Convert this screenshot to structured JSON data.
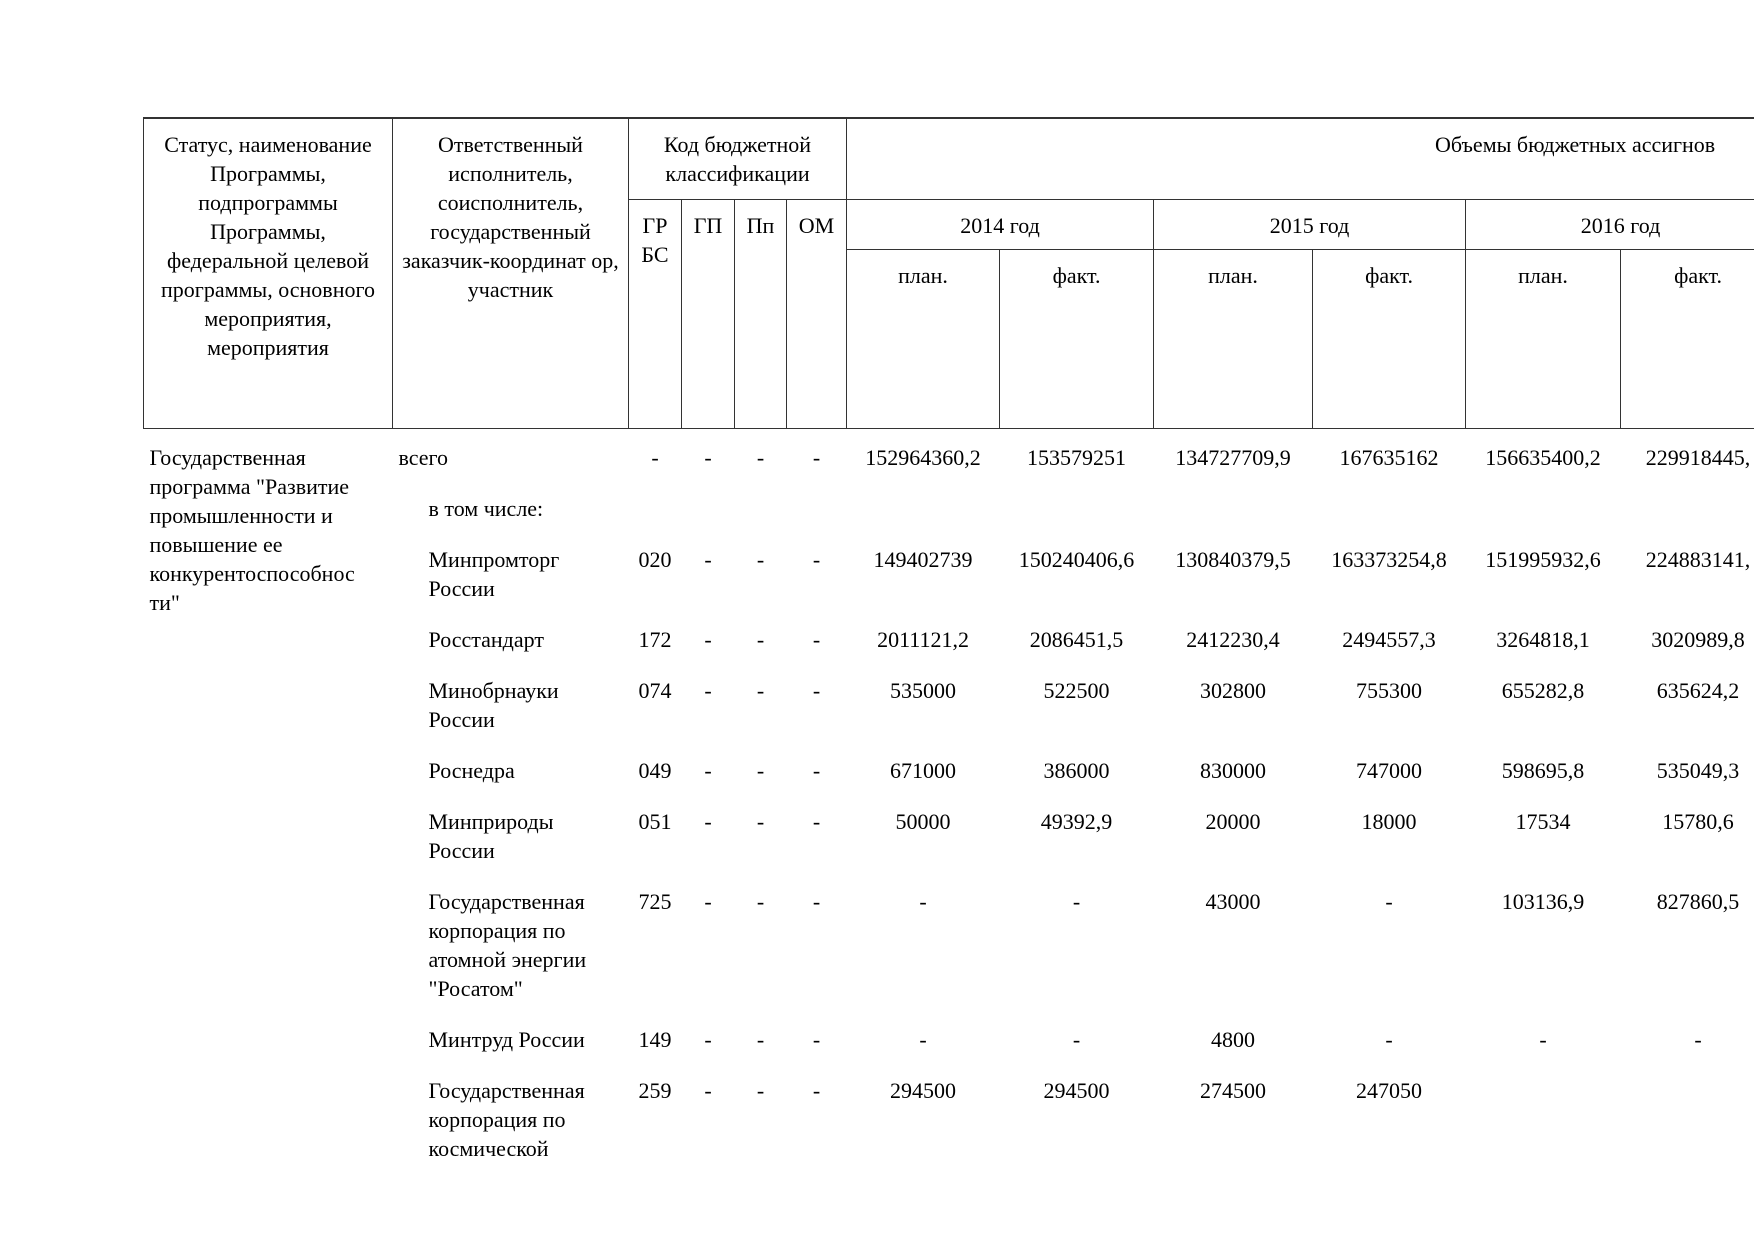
{
  "header": {
    "status": "Статус, наименование Программы, подпрограммы Программы, федеральной целевой программы, основного мероприятия, мероприятия",
    "responsible": "Ответственный исполнитель, соисполнитель, государственный заказчик-координат ор, участник",
    "code_title": "Код бюджетной классификации",
    "codes": [
      "ГР БС",
      "ГП",
      "Пп",
      "ОМ"
    ],
    "volumes_title": "Объемы бюджетных ассигнов",
    "years": [
      "2014 год",
      "2015 год",
      "2016 год"
    ],
    "subcols": [
      "план.",
      "факт.",
      "план.",
      "факт.",
      "план.",
      "факт."
    ]
  },
  "program": "Государственная программа \"Развитие промышленности и повышение ее конкурентоспособнос ти\"",
  "rows": [
    {
      "executor": "всего",
      "codes": [
        "-",
        "-",
        "-",
        "-"
      ],
      "values": [
        "152964360,2",
        "153579251",
        "134727709,9",
        "167635162",
        "156635400,2",
        "229918445,"
      ]
    },
    {
      "executor": "в том числе:"
    },
    {
      "executor": "Минпромторг России",
      "codes": [
        "020",
        "-",
        "-",
        "-"
      ],
      "values": [
        "149402739",
        "150240406,6",
        "130840379,5",
        "163373254,8",
        "151995932,6",
        "224883141,"
      ]
    },
    {
      "executor": "Росстандарт",
      "codes": [
        "172",
        "-",
        "-",
        "-"
      ],
      "values": [
        "2011121,2",
        "2086451,5",
        "2412230,4",
        "2494557,3",
        "3264818,1",
        "3020989,8"
      ]
    },
    {
      "executor": "Минобрнауки России",
      "codes": [
        "074",
        "-",
        "-",
        "-"
      ],
      "values": [
        "535000",
        "522500",
        "302800",
        "755300",
        "655282,8",
        "635624,2"
      ]
    },
    {
      "executor": "Роснедра",
      "codes": [
        "049",
        "-",
        "-",
        "-"
      ],
      "values": [
        "671000",
        "386000",
        "830000",
        "747000",
        "598695,8",
        "535049,3"
      ]
    },
    {
      "executor": "Минприроды России",
      "codes": [
        "051",
        "-",
        "-",
        "-"
      ],
      "values": [
        "50000",
        "49392,9",
        "20000",
        "18000",
        "17534",
        "15780,6"
      ]
    },
    {
      "executor": "Государственная корпорация по атомной энергии \"Росатом\"",
      "codes": [
        "725",
        "-",
        "-",
        "-"
      ],
      "values": [
        "-",
        "-",
        "43000",
        "-",
        "103136,9",
        "827860,5"
      ]
    },
    {
      "executor": "Минтруд России",
      "codes": [
        "149",
        "-",
        "-",
        "-"
      ],
      "values": [
        "-",
        "-",
        "4800",
        "-",
        "-",
        "-"
      ]
    },
    {
      "executor": "Государственная корпорация по космической",
      "codes": [
        "259",
        "-",
        "-",
        "-"
      ],
      "values": [
        "294500",
        "294500",
        "274500",
        "247050"
      ]
    }
  ]
}
